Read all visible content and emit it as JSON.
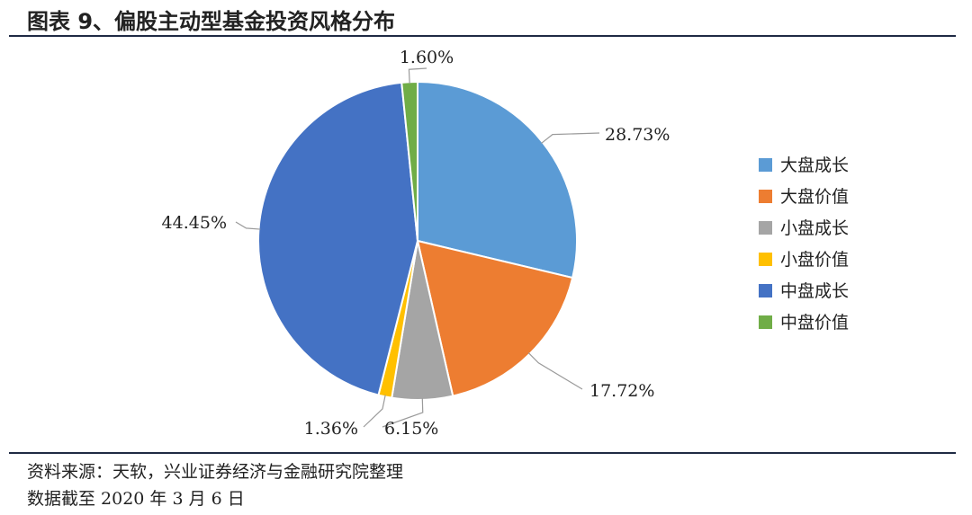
{
  "header": {
    "title": "图表 9、偏股主动型基金投资风格分布"
  },
  "footer": {
    "source": "资料来源：天软，兴业证券经济与金融研究院整理",
    "date_note": "数据截至 2020 年 3 月 6 日"
  },
  "chart_data": {
    "type": "pie",
    "title": "",
    "legend_position": "right",
    "start_angle_deg": 0,
    "direction": "clockwise",
    "slices": [
      {
        "label": "大盘成长",
        "value": 28.73,
        "value_label": "28.73%",
        "color": "#5B9BD5"
      },
      {
        "label": "大盘价值",
        "value": 17.72,
        "value_label": "17.72%",
        "color": "#ED7D31"
      },
      {
        "label": "小盘成长",
        "value": 6.15,
        "value_label": "6.15%",
        "color": "#A5A5A5"
      },
      {
        "label": "小盘价值",
        "value": 1.36,
        "value_label": "1.36%",
        "color": "#FFC000"
      },
      {
        "label": "中盘成长",
        "value": 44.45,
        "value_label": "44.45%",
        "color": "#4472C4"
      },
      {
        "label": "中盘价值",
        "value": 1.6,
        "value_label": "1.60%",
        "color": "#70AD47"
      }
    ]
  }
}
